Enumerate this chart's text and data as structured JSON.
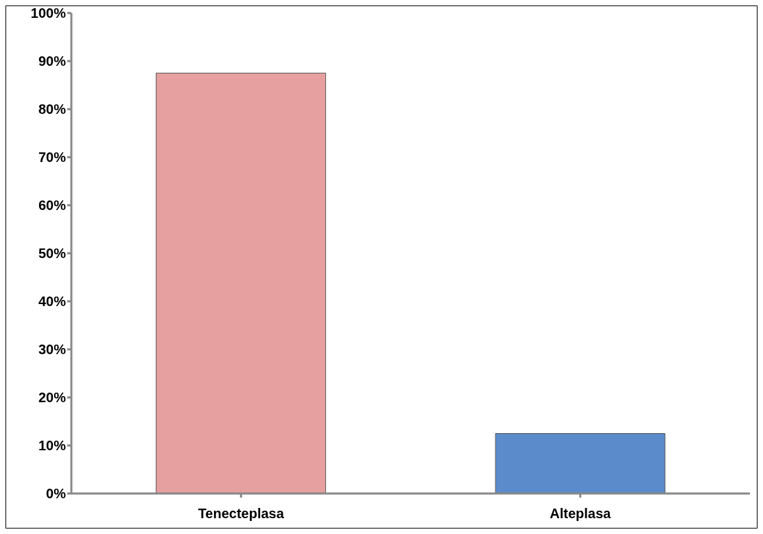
{
  "chart_data": {
    "type": "bar",
    "categories": [
      "Tenecteplasa",
      "Alteplasa"
    ],
    "values": [
      87.5,
      12.5
    ],
    "colors": [
      "#e6a09f",
      "#5b8bcb"
    ],
    "ylim": [
      0,
      100
    ],
    "yticks": [
      {
        "value": 0,
        "label": "0%"
      },
      {
        "value": 10,
        "label": "10%"
      },
      {
        "value": 20,
        "label": "20%"
      },
      {
        "value": 30,
        "label": "30%"
      },
      {
        "value": 40,
        "label": "40%"
      },
      {
        "value": 50,
        "label": "50%"
      },
      {
        "value": 60,
        "label": "60%"
      },
      {
        "value": 70,
        "label": "70%"
      },
      {
        "value": 80,
        "label": "80%"
      },
      {
        "value": 90,
        "label": "90%"
      },
      {
        "value": 100,
        "label": "100%"
      }
    ],
    "grid": false
  }
}
